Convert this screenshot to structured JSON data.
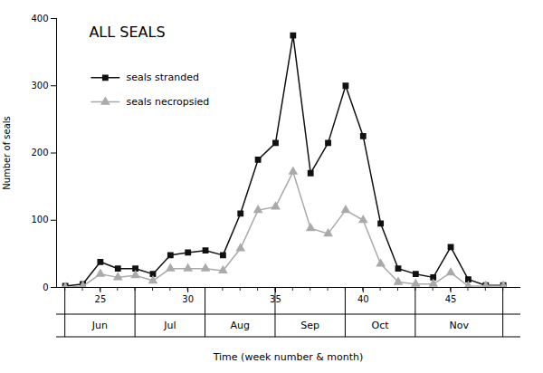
{
  "chart_data": {
    "type": "line",
    "title": "ALL SEALS",
    "xlabel": "Time (week number & month)",
    "ylabel": "Number of seals",
    "x": [
      23,
      24,
      25,
      26,
      27,
      28,
      29,
      30,
      31,
      32,
      33,
      34,
      35,
      36,
      37,
      38,
      39,
      40,
      41,
      42,
      43,
      44,
      45,
      46,
      47,
      48
    ],
    "series": [
      {
        "name": "seals stranded",
        "color": "#111111",
        "marker": "square",
        "values": [
          2,
          5,
          38,
          28,
          28,
          20,
          48,
          52,
          55,
          48,
          110,
          190,
          215,
          375,
          170,
          215,
          300,
          225,
          95,
          28,
          20,
          15,
          60,
          12,
          3,
          3
        ]
      },
      {
        "name": "seals necropsied",
        "color": "#aaaaaa",
        "marker": "triangle",
        "values": [
          0,
          2,
          20,
          15,
          18,
          10,
          28,
          28,
          28,
          25,
          58,
          115,
          120,
          172,
          88,
          80,
          115,
          100,
          35,
          8,
          5,
          5,
          22,
          2,
          2,
          2
        ]
      }
    ],
    "xlim": [
      22.5,
      49.0
    ],
    "xticks": [
      25,
      30,
      35,
      40,
      45
    ],
    "ylim": [
      0,
      400
    ],
    "yticks": [
      0,
      100,
      200,
      300,
      400
    ],
    "month_boundaries": [
      23,
      27,
      31,
      35,
      39,
      43,
      48
    ],
    "annotations": [
      {
        "x": 25,
        "text": "Jun"
      },
      {
        "x": 29,
        "text": "Jul"
      },
      {
        "x": 33,
        "text": "Aug"
      },
      {
        "x": 37,
        "text": "Sep"
      },
      {
        "x": 41,
        "text": "Oct"
      },
      {
        "x": 45.5,
        "text": "Nov"
      }
    ],
    "legend": "upper left",
    "grid": false
  }
}
